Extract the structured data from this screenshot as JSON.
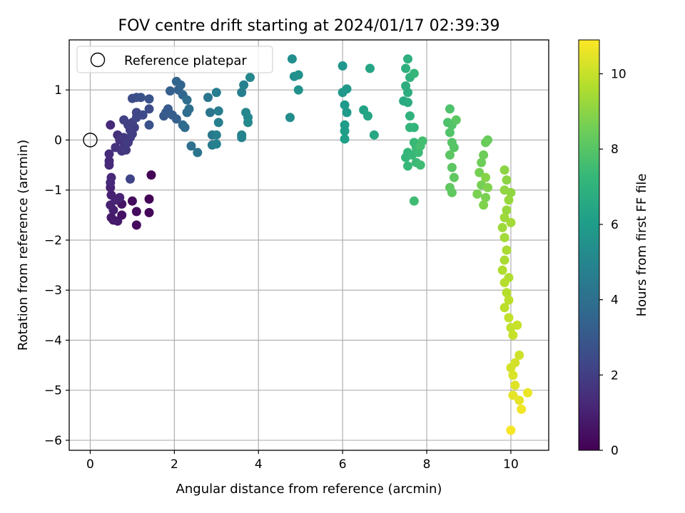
{
  "chart_data": {
    "type": "scatter",
    "title": "FOV centre drift starting at 2024/01/17 02:39:39",
    "xlabel": "Angular distance from reference (arcmin)",
    "ylabel": "Rotation from reference (arcmin)",
    "xlim": [
      -0.5,
      10.9
    ],
    "ylim": [
      -6.2,
      2.0
    ],
    "xticks": [
      0,
      2,
      4,
      6,
      8,
      10
    ],
    "yticks": [
      1,
      0,
      -1,
      -2,
      -3,
      -4,
      -5,
      -6
    ],
    "xtick_labels": [
      "0",
      "2",
      "4",
      "6",
      "8",
      "10"
    ],
    "ytick_labels": [
      "1",
      "0",
      "−1",
      "−2",
      "−3",
      "−4",
      "−5",
      "−6"
    ],
    "grid": true,
    "legend": {
      "position": "top-left",
      "entries": [
        "Reference platepar"
      ]
    },
    "reference_point": {
      "x": 0,
      "y": 0,
      "label": "Reference platepar"
    },
    "colorbar": {
      "label": "Hours from first FF file",
      "colormap": "viridis",
      "range": [
        0,
        10.9
      ],
      "ticks": [
        0,
        2,
        4,
        6,
        8,
        10
      ],
      "tick_labels": [
        "0",
        "2",
        "4",
        "6",
        "8",
        "10"
      ]
    },
    "points": [
      [
        1.45,
        -0.7,
        0.1
      ],
      [
        1.4,
        -1.18,
        0.1
      ],
      [
        1.4,
        -1.45,
        0.2
      ],
      [
        1.0,
        -1.22,
        0.3
      ],
      [
        1.1,
        -1.43,
        0.3
      ],
      [
        1.1,
        -1.7,
        0.3
      ],
      [
        0.75,
        -1.5,
        0.5
      ],
      [
        0.75,
        -1.28,
        0.6
      ],
      [
        0.65,
        -1.62,
        0.7
      ],
      [
        0.55,
        -1.6,
        0.8
      ],
      [
        0.5,
        -1.55,
        0.8
      ],
      [
        0.55,
        -1.4,
        0.9
      ],
      [
        0.48,
        -1.3,
        1.0
      ],
      [
        0.5,
        -1.1,
        1.0
      ],
      [
        0.6,
        -1.2,
        1.1
      ],
      [
        0.7,
        -1.15,
        1.1
      ],
      [
        0.48,
        -0.95,
        1.1
      ],
      [
        0.48,
        -0.85,
        1.2
      ],
      [
        0.5,
        -0.75,
        1.2
      ],
      [
        0.45,
        -0.5,
        1.3
      ],
      [
        0.45,
        -0.42,
        1.3
      ],
      [
        0.45,
        -0.28,
        1.4
      ],
      [
        0.48,
        0.3,
        1.3
      ],
      [
        0.65,
        0.1,
        1.5
      ],
      [
        0.7,
        0.0,
        1.6
      ],
      [
        0.6,
        -0.15,
        1.6
      ],
      [
        0.75,
        -0.22,
        1.7
      ],
      [
        0.8,
        -0.15,
        1.7
      ],
      [
        0.85,
        -0.2,
        1.8
      ],
      [
        0.8,
        0.05,
        1.8
      ],
      [
        0.9,
        -0.05,
        1.9
      ],
      [
        0.95,
        0.05,
        1.9
      ],
      [
        1.0,
        0.12,
        2.0
      ],
      [
        0.95,
        0.2,
        2.0
      ],
      [
        1.05,
        0.25,
        2.0
      ],
      [
        0.9,
        0.3,
        2.1
      ],
      [
        1.0,
        0.35,
        2.1
      ],
      [
        0.8,
        0.4,
        2.1
      ],
      [
        0.95,
        -0.78,
        2.2
      ],
      [
        1.1,
        0.45,
        2.3
      ],
      [
        1.1,
        0.55,
        2.3
      ],
      [
        1.25,
        0.5,
        2.4
      ],
      [
        1.4,
        0.62,
        2.5
      ],
      [
        1.0,
        0.83,
        2.5
      ],
      [
        1.1,
        0.85,
        2.6
      ],
      [
        1.2,
        0.85,
        2.7
      ],
      [
        1.4,
        0.82,
        2.8
      ],
      [
        1.4,
        0.3,
        2.7
      ],
      [
        1.75,
        0.48,
        3.0
      ],
      [
        1.8,
        0.55,
        3.1
      ],
      [
        1.85,
        0.62,
        3.1
      ],
      [
        1.95,
        0.5,
        3.2
      ],
      [
        2.05,
        0.42,
        3.3
      ],
      [
        1.9,
        0.98,
        3.3
      ],
      [
        2.1,
        1.0,
        3.4
      ],
      [
        2.05,
        1.17,
        3.5
      ],
      [
        2.15,
        1.1,
        3.5
      ],
      [
        2.2,
        0.9,
        3.6
      ],
      [
        2.2,
        0.3,
        3.7
      ],
      [
        2.25,
        0.25,
        3.8
      ],
      [
        2.3,
        0.55,
        3.8
      ],
      [
        2.35,
        0.62,
        3.9
      ],
      [
        2.3,
        0.8,
        3.9
      ],
      [
        2.4,
        -0.12,
        4.0
      ],
      [
        2.55,
        -0.25,
        4.2
      ],
      [
        2.8,
        0.85,
        4.3
      ],
      [
        2.85,
        0.55,
        4.3
      ],
      [
        2.9,
        0.1,
        4.4
      ],
      [
        2.9,
        -0.1,
        4.5
      ],
      [
        3.0,
        0.95,
        4.6
      ],
      [
        3.05,
        0.58,
        4.6
      ],
      [
        3.05,
        0.35,
        4.7
      ],
      [
        3.0,
        0.1,
        4.7
      ],
      [
        3.0,
        -0.08,
        4.8
      ],
      [
        3.6,
        0.95,
        4.7
      ],
      [
        3.65,
        1.1,
        4.8
      ],
      [
        3.6,
        0.1,
        4.9
      ],
      [
        3.6,
        0.05,
        4.9
      ],
      [
        3.7,
        0.55,
        5.0
      ],
      [
        3.75,
        0.45,
        5.0
      ],
      [
        3.75,
        0.35,
        5.1
      ],
      [
        3.8,
        1.25,
        5.1
      ],
      [
        4.75,
        0.45,
        5.3
      ],
      [
        4.8,
        1.62,
        5.4
      ],
      [
        4.85,
        1.27,
        5.4
      ],
      [
        4.95,
        1.3,
        5.5
      ],
      [
        4.95,
        1.0,
        5.5
      ],
      [
        6.0,
        1.48,
        5.7
      ],
      [
        6.0,
        0.95,
        5.8
      ],
      [
        6.1,
        1.02,
        5.8
      ],
      [
        6.05,
        0.7,
        5.9
      ],
      [
        6.1,
        0.55,
        5.9
      ],
      [
        6.05,
        0.3,
        6.0
      ],
      [
        6.05,
        0.18,
        6.0
      ],
      [
        6.05,
        0.02,
        6.1
      ],
      [
        6.5,
        0.6,
        6.3
      ],
      [
        6.6,
        0.48,
        6.4
      ],
      [
        6.65,
        1.43,
        6.4
      ],
      [
        6.75,
        0.1,
        6.5
      ],
      [
        7.45,
        0.78,
        6.6
      ],
      [
        7.55,
        0.75,
        6.7
      ],
      [
        7.55,
        0.95,
        6.8
      ],
      [
        7.5,
        1.08,
        6.8
      ],
      [
        7.5,
        1.43,
        6.9
      ],
      [
        7.55,
        1.62,
        6.9
      ],
      [
        7.6,
        1.25,
        7.0
      ],
      [
        7.6,
        0.48,
        7.0
      ],
      [
        7.6,
        0.25,
        7.1
      ],
      [
        7.7,
        0.25,
        7.1
      ],
      [
        7.7,
        1.33,
        7.2
      ],
      [
        7.55,
        -0.25,
        7.2
      ],
      [
        7.5,
        -0.35,
        7.2
      ],
      [
        7.55,
        -0.52,
        7.3
      ],
      [
        7.65,
        -0.3,
        7.3
      ],
      [
        7.7,
        -0.05,
        7.3
      ],
      [
        7.75,
        -0.15,
        7.4
      ],
      [
        7.8,
        -0.25,
        7.4
      ],
      [
        7.75,
        -0.45,
        7.4
      ],
      [
        7.85,
        -0.5,
        7.5
      ],
      [
        7.7,
        -1.22,
        7.5
      ],
      [
        7.85,
        -0.12,
        7.6
      ],
      [
        7.9,
        -0.02,
        7.6
      ],
      [
        8.5,
        0.35,
        7.8
      ],
      [
        8.55,
        0.62,
        7.8
      ],
      [
        8.6,
        0.3,
        7.9
      ],
      [
        8.55,
        0.15,
        7.9
      ],
      [
        8.6,
        -0.05,
        8.0
      ],
      [
        8.65,
        -0.15,
        8.0
      ],
      [
        8.55,
        -0.3,
        8.1
      ],
      [
        8.6,
        -0.55,
        8.1
      ],
      [
        8.65,
        -0.75,
        8.2
      ],
      [
        8.55,
        -0.95,
        8.2
      ],
      [
        8.6,
        -1.05,
        8.2
      ],
      [
        8.7,
        0.4,
        8.1
      ],
      [
        9.4,
        -0.05,
        8.4
      ],
      [
        9.45,
        0.0,
        8.4
      ],
      [
        9.35,
        -0.3,
        8.5
      ],
      [
        9.3,
        -0.45,
        8.5
      ],
      [
        9.25,
        -0.65,
        8.6
      ],
      [
        9.3,
        -0.9,
        8.6
      ],
      [
        9.2,
        -1.08,
        8.7
      ],
      [
        9.4,
        -1.15,
        8.7
      ],
      [
        9.35,
        -1.3,
        8.8
      ],
      [
        9.45,
        -0.95,
        8.8
      ],
      [
        9.4,
        -0.75,
        8.9
      ],
      [
        9.85,
        -0.6,
        9.0
      ],
      [
        9.9,
        -0.8,
        9.0
      ],
      [
        9.85,
        -1.0,
        9.1
      ],
      [
        10.0,
        -1.05,
        9.1
      ],
      [
        9.95,
        -1.2,
        9.2
      ],
      [
        9.9,
        -1.4,
        9.2
      ],
      [
        9.85,
        -1.55,
        9.3
      ],
      [
        9.8,
        -1.75,
        9.3
      ],
      [
        9.85,
        -1.95,
        9.4
      ],
      [
        10.0,
        -1.65,
        9.4
      ],
      [
        9.9,
        -2.2,
        9.5
      ],
      [
        9.85,
        -2.4,
        9.5
      ],
      [
        9.8,
        -2.6,
        9.6
      ],
      [
        9.95,
        -2.75,
        9.6
      ],
      [
        9.85,
        -2.85,
        9.7
      ],
      [
        9.9,
        -3.05,
        9.7
      ],
      [
        9.95,
        -3.2,
        9.8
      ],
      [
        9.85,
        -3.35,
        9.8
      ],
      [
        9.95,
        -3.55,
        9.9
      ],
      [
        10.0,
        -3.75,
        9.9
      ],
      [
        10.05,
        -3.9,
        10.0
      ],
      [
        10.15,
        -3.7,
        10.0
      ],
      [
        10.2,
        -4.3,
        10.1
      ],
      [
        10.1,
        -4.45,
        10.2
      ],
      [
        10.0,
        -4.55,
        10.2
      ],
      [
        10.05,
        -4.7,
        10.3
      ],
      [
        10.1,
        -4.9,
        10.4
      ],
      [
        10.05,
        -5.1,
        10.5
      ],
      [
        10.2,
        -5.2,
        10.5
      ],
      [
        10.4,
        -5.05,
        10.6
      ],
      [
        10.25,
        -5.38,
        10.7
      ],
      [
        10.0,
        -5.8,
        10.8
      ]
    ]
  }
}
